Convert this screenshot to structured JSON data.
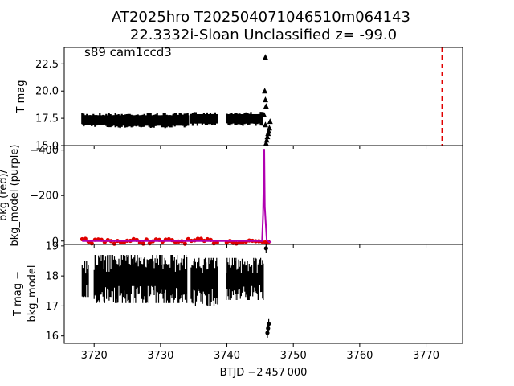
{
  "figure": {
    "title_line1": "AT2025hro  T202504071046510m064143",
    "title_line2": "22.3332i-Sloan Unclassified z= -99.0"
  },
  "chart_data": [
    {
      "type": "scatter",
      "panel": "top",
      "annotation": "s89 cam1ccd3",
      "ylabel": "T mag",
      "y_inverted": true,
      "xlim": [
        3715.5,
        3775.5
      ],
      "ylim": [
        24.0,
        15.0
      ],
      "yticks": [
        "15.0",
        "17.5",
        "20.0",
        "22.5"
      ],
      "yticks_values": [
        15.0,
        17.5,
        20.0,
        22.5
      ],
      "series": [
        {
          "marker": "triangle",
          "color": "#000000",
          "segments": [
            {
              "x": [
                3718.2,
                3722.0
              ],
              "y_low": 16.7,
              "y_high": 18.0
            },
            {
              "x": [
                3722.0,
                3734.3
              ],
              "y_low": 16.6,
              "y_high": 18.0
            },
            {
              "x": [
                3734.6,
                3738.6
              ],
              "y_low": 16.8,
              "y_high": 18.1
            },
            {
              "x": [
                3740.0,
                3745.4
              ],
              "y_low": 16.8,
              "y_high": 18.1
            }
          ],
          "points": [
            [
              3745.9,
              15.2
            ],
            [
              3746.0,
              15.5
            ],
            [
              3746.1,
              15.8
            ],
            [
              3746.2,
              16.1
            ],
            [
              3746.3,
              16.3
            ],
            [
              3746.4,
              16.6
            ],
            [
              3745.8,
              16.9
            ],
            [
              3746.5,
              17.2
            ],
            [
              3745.6,
              17.8
            ],
            [
              3745.9,
              18.6
            ],
            [
              3745.8,
              19.2
            ],
            [
              3745.7,
              20.0
            ],
            [
              3745.8,
              23.1
            ]
          ]
        }
      ],
      "vline": {
        "x": 3772.4,
        "color": "#e00000",
        "style": "dashed"
      }
    },
    {
      "type": "line",
      "panel": "middle",
      "ylabel_lines": [
        "bkg (red)/",
        "bkg_model (purple)"
      ],
      "xlim": [
        3715.5,
        3775.5
      ],
      "ylim": [
        -420,
        15
      ],
      "yticks": [
        "0",
        "−200",
        "−400"
      ],
      "yticks_values": [
        0,
        -200,
        -400
      ],
      "series": [
        {
          "color": "#e00000",
          "kind": "points",
          "x_range": [
            3718.2,
            3746.7
          ],
          "y_range": [
            -10,
            12
          ]
        },
        {
          "color": "#b000b0",
          "kind": "line",
          "x": [
            3718.2,
            3745.3,
            3745.45,
            3745.55,
            3745.62,
            3745.7,
            3746.0,
            3746.4,
            3746.7
          ],
          "y": [
            0,
            0,
            -120,
            -300,
            -405,
            -150,
            -5,
            5,
            2
          ]
        }
      ]
    },
    {
      "type": "scatter",
      "panel": "bottom",
      "ylabel_lines": [
        "T mag −",
        "bkg_model"
      ],
      "y_inverted": true,
      "xlim": [
        3715.5,
        3775.5
      ],
      "ylim": [
        19.05,
        15.75
      ],
      "yticks": [
        "16",
        "17",
        "18",
        "19"
      ],
      "yticks_values": [
        16,
        17,
        18,
        19
      ],
      "xticks": [
        "3720",
        "3730",
        "3740",
        "3750",
        "3760",
        "3770"
      ],
      "xticks_values": [
        3720,
        3730,
        3740,
        3750,
        3760,
        3770
      ],
      "xlabel": "BTJD −2 457 000",
      "series": [
        {
          "marker": "dot",
          "color": "#000000",
          "segments": [
            {
              "x": [
                3718.2,
                3719.2
              ],
              "y_low": 17.3,
              "y_high": 18.5
            },
            {
              "x": [
                3720.0,
                3734.0
              ],
              "y_low": 17.1,
              "y_high": 18.7
            },
            {
              "x": [
                3734.6,
                3738.7
              ],
              "y_low": 17.0,
              "y_high": 18.6
            },
            {
              "x": [
                3739.9,
                3745.5
              ],
              "y_low": 17.2,
              "y_high": 18.6
            }
          ],
          "points": [
            [
              3746.1,
              16.1
            ],
            [
              3746.2,
              16.25
            ],
            [
              3746.3,
              16.4
            ],
            [
              3745.9,
              18.92
            ]
          ]
        }
      ]
    }
  ]
}
